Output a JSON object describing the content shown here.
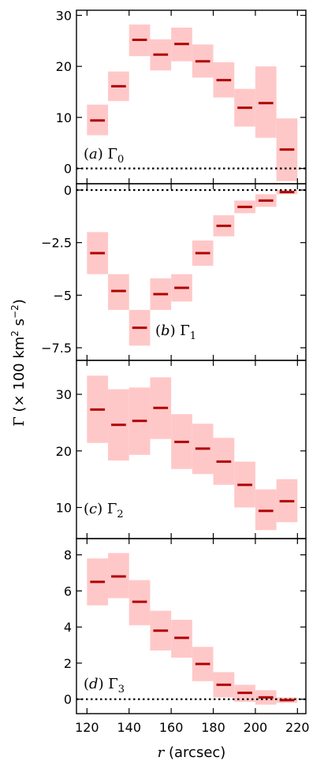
{
  "chart_data": [
    {
      "type": "bar",
      "panel_label": "(a) Γ0",
      "label_letter": "a",
      "label_symbol": "Γ",
      "label_sub": "0",
      "ylim": [
        -3,
        31
      ],
      "yticks": [
        0,
        10,
        20,
        30
      ],
      "ytick_labels": [
        "0",
        "10",
        "20",
        "30"
      ],
      "zero_line": true,
      "bins": [
        {
          "r_min": 120,
          "r_max": 130,
          "value": 9.4,
          "low": 6.5,
          "high": 12.5
        },
        {
          "r_min": 130,
          "r_max": 140,
          "value": 16.1,
          "low": 13.2,
          "high": 19.0
        },
        {
          "r_min": 140,
          "r_max": 150,
          "value": 25.2,
          "low": 22.0,
          "high": 28.2
        },
        {
          "r_min": 150,
          "r_max": 160,
          "value": 22.3,
          "low": 19.2,
          "high": 25.3
        },
        {
          "r_min": 160,
          "r_max": 170,
          "value": 24.4,
          "low": 21.0,
          "high": 27.6
        },
        {
          "r_min": 170,
          "r_max": 180,
          "value": 21.0,
          "low": 17.8,
          "high": 24.3
        },
        {
          "r_min": 180,
          "r_max": 190,
          "value": 17.3,
          "low": 13.9,
          "high": 20.8
        },
        {
          "r_min": 190,
          "r_max": 200,
          "value": 11.9,
          "low": 8.2,
          "high": 15.6
        },
        {
          "r_min": 200,
          "r_max": 210,
          "value": 12.8,
          "low": 6.0,
          "high": 20.0
        },
        {
          "r_min": 210,
          "r_max": 220,
          "value": 3.7,
          "low": -2.5,
          "high": 9.8
        }
      ]
    },
    {
      "type": "bar",
      "panel_label": "(b) Γ1",
      "label_letter": "b",
      "label_symbol": "Γ",
      "label_sub": "1",
      "ylim": [
        -8.1,
        0.3
      ],
      "yticks": [
        0,
        -2.5,
        -5,
        -7.5
      ],
      "ytick_labels": [
        "0",
        "−2.5",
        "−5",
        "−7.5"
      ],
      "zero_line": true,
      "bins": [
        {
          "r_min": 120,
          "r_max": 130,
          "value": -3.0,
          "low": -4.0,
          "high": -2.0
        },
        {
          "r_min": 130,
          "r_max": 140,
          "value": -4.8,
          "low": -5.7,
          "high": -4.0
        },
        {
          "r_min": 140,
          "r_max": 150,
          "value": -6.55,
          "low": -7.4,
          "high": -5.7
        },
        {
          "r_min": 150,
          "r_max": 160,
          "value": -4.95,
          "low": -5.7,
          "high": -4.2
        },
        {
          "r_min": 160,
          "r_max": 170,
          "value": -4.65,
          "low": -5.3,
          "high": -4.0
        },
        {
          "r_min": 170,
          "r_max": 180,
          "value": -3.0,
          "low": -3.6,
          "high": -2.4
        },
        {
          "r_min": 180,
          "r_max": 190,
          "value": -1.7,
          "low": -2.2,
          "high": -1.2
        },
        {
          "r_min": 190,
          "r_max": 200,
          "value": -0.8,
          "low": -1.1,
          "high": -0.5
        },
        {
          "r_min": 200,
          "r_max": 210,
          "value": -0.5,
          "low": -0.8,
          "high": -0.2
        },
        {
          "r_min": 210,
          "r_max": 220,
          "value": -0.1,
          "low": -0.2,
          "high": 0.0
        }
      ]
    },
    {
      "type": "bar",
      "panel_label": "(c) Γ2",
      "label_letter": "c",
      "label_symbol": "Γ",
      "label_sub": "2",
      "ylim": [
        4.5,
        36
      ],
      "yticks": [
        10,
        20,
        30
      ],
      "ytick_labels": [
        "10",
        "20",
        "30"
      ],
      "zero_line": false,
      "bins": [
        {
          "r_min": 120,
          "r_max": 130,
          "value": 27.3,
          "low": 21.4,
          "high": 33.3
        },
        {
          "r_min": 130,
          "r_max": 140,
          "value": 24.6,
          "low": 18.3,
          "high": 30.9
        },
        {
          "r_min": 140,
          "r_max": 150,
          "value": 25.3,
          "low": 19.3,
          "high": 31.2
        },
        {
          "r_min": 150,
          "r_max": 160,
          "value": 27.6,
          "low": 22.1,
          "high": 33.0
        },
        {
          "r_min": 160,
          "r_max": 170,
          "value": 21.6,
          "low": 16.8,
          "high": 26.5
        },
        {
          "r_min": 170,
          "r_max": 180,
          "value": 20.4,
          "low": 15.9,
          "high": 24.8
        },
        {
          "r_min": 180,
          "r_max": 190,
          "value": 18.1,
          "low": 14.0,
          "high": 22.3
        },
        {
          "r_min": 190,
          "r_max": 200,
          "value": 14.0,
          "low": 10.0,
          "high": 18.1
        },
        {
          "r_min": 200,
          "r_max": 210,
          "value": 9.4,
          "low": 6.0,
          "high": 13.2
        },
        {
          "r_min": 210,
          "r_max": 220,
          "value": 11.1,
          "low": 7.4,
          "high": 15.0
        }
      ]
    },
    {
      "type": "bar",
      "panel_label": "(d) Γ3",
      "label_letter": "d",
      "label_symbol": "Γ",
      "label_sub": "3",
      "ylim": [
        -0.8,
        8.9
      ],
      "yticks": [
        0,
        2,
        4,
        6,
        8
      ],
      "ytick_labels": [
        "0",
        "2",
        "4",
        "6",
        "8"
      ],
      "zero_line": true,
      "bins": [
        {
          "r_min": 120,
          "r_max": 130,
          "value": 6.5,
          "low": 5.2,
          "high": 7.8
        },
        {
          "r_min": 130,
          "r_max": 140,
          "value": 6.8,
          "low": 5.6,
          "high": 8.1
        },
        {
          "r_min": 140,
          "r_max": 150,
          "value": 5.4,
          "low": 4.1,
          "high": 6.6
        },
        {
          "r_min": 150,
          "r_max": 160,
          "value": 3.8,
          "low": 2.7,
          "high": 4.9
        },
        {
          "r_min": 160,
          "r_max": 170,
          "value": 3.4,
          "low": 2.3,
          "high": 4.4
        },
        {
          "r_min": 170,
          "r_max": 180,
          "value": 1.95,
          "low": 1.0,
          "high": 2.9
        },
        {
          "r_min": 180,
          "r_max": 190,
          "value": 0.8,
          "low": 0.1,
          "high": 1.5
        },
        {
          "r_min": 190,
          "r_max": 200,
          "value": 0.35,
          "low": -0.15,
          "high": 0.8
        },
        {
          "r_min": 200,
          "r_max": 210,
          "value": 0.1,
          "low": -0.3,
          "high": 0.5
        },
        {
          "r_min": 210,
          "r_max": 220,
          "value": -0.05,
          "low": -0.2,
          "high": 0.1
        }
      ]
    }
  ],
  "shared_x": {
    "xlim": [
      115,
      224
    ],
    "xticks": [
      120,
      140,
      160,
      180,
      200,
      220
    ],
    "xtick_labels": [
      "120",
      "140",
      "160",
      "180",
      "200",
      "220"
    ],
    "xlabel_symbol": "r",
    "xlabel_unit": "(arcsec)"
  },
  "ylabel": {
    "symbol": "Γ",
    "text": "(× 100 km",
    "sup1": "2",
    "text2": " s",
    "sup2": "−2",
    "text3": ")"
  },
  "colors": {
    "band": "#ffc8c8",
    "value_line": "#b00000",
    "zero_line": "#000000",
    "frame": "#000000"
  }
}
